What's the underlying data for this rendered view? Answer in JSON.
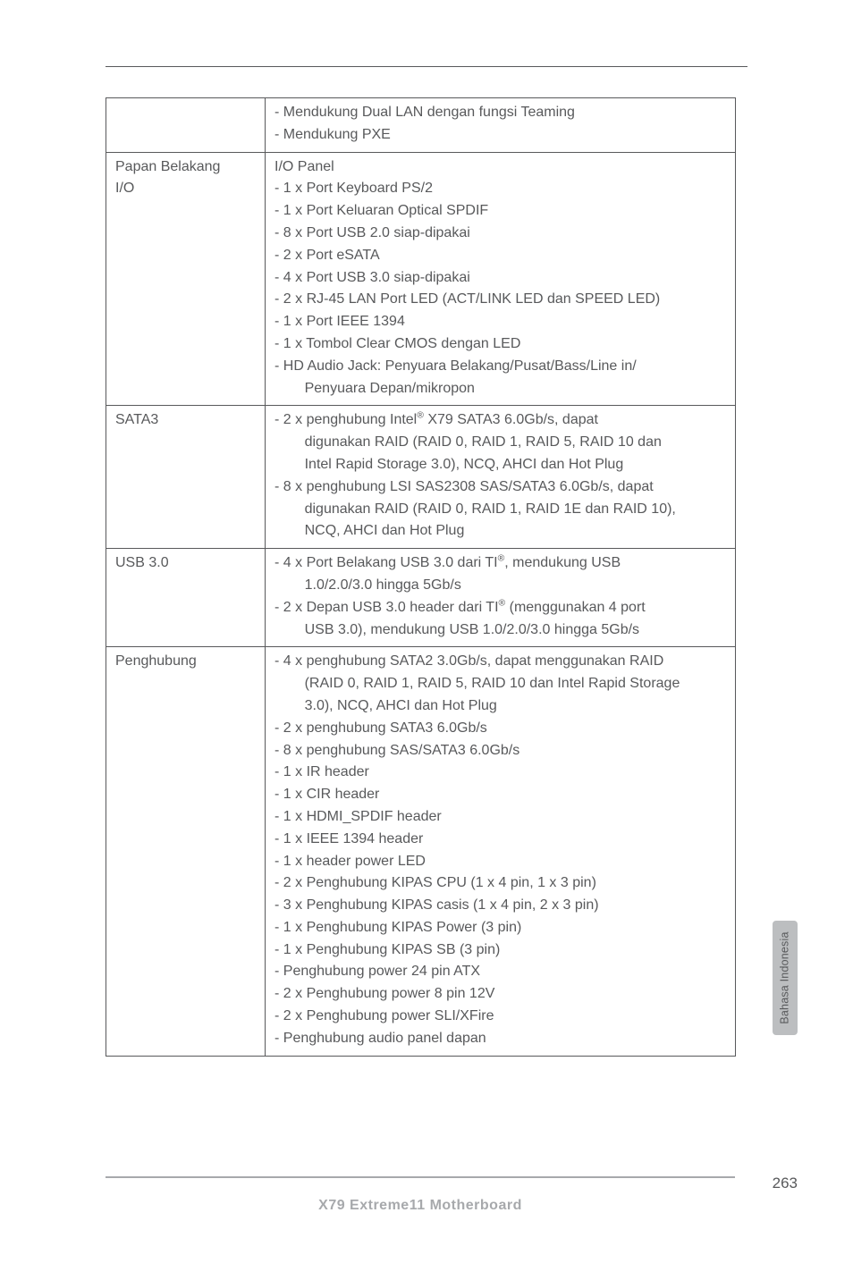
{
  "colors": {
    "text": "#58595b",
    "rule": "#58595b",
    "footer_rule": "#a7a9ac",
    "footer_text": "#a7a9ac",
    "side_tab_bg": "#bcbec0",
    "background": "#ffffff"
  },
  "typography": {
    "body_font": "Arial",
    "body_size_pt": 12,
    "line_height": 1.55
  },
  "side_tab": {
    "label": "Bahasa Indonesia"
  },
  "footer": {
    "title": "X79  Extreme11  Motherboard",
    "page_number": "263"
  },
  "rows": [
    {
      "label": "",
      "continuation": true,
      "lines": [
        {
          "t": "- Mendukung Dual LAN dengan fungsi Teaming"
        },
        {
          "t": "- Mendukung PXE"
        }
      ]
    },
    {
      "label": "Papan Belakang I/O",
      "label_parts": [
        "Papan Belakang",
        "I/O"
      ],
      "lines": [
        {
          "t": "I/O Panel"
        },
        {
          "t": "- 1 x Port Keyboard PS/2"
        },
        {
          "t": "- 1 x Port Keluaran Optical SPDIF"
        },
        {
          "t": "- 8 x Port USB 2.0 siap-dipakai"
        },
        {
          "t": "- 2 x Port eSATA"
        },
        {
          "t": "- 4 x Port USB 3.0 siap-dipakai"
        },
        {
          "t": "- 2 x RJ-45 LAN Port LED (ACT/LINK LED dan SPEED LED)"
        },
        {
          "t": "- 1 x Port IEEE 1394"
        },
        {
          "t": "- 1 x Tombol Clear CMOS dengan LED"
        },
        {
          "t": "- HD Audio Jack: Penyuara Belakang/Pusat/Bass/Line in/"
        },
        {
          "t": "Penyuara Depan/mikropon",
          "indent": 2
        }
      ]
    },
    {
      "label": "SATA3",
      "lines": [
        {
          "html": "- 2 x penghubung Intel<sup>®</sup> X79 SATA3 6.0Gb/s, dapat"
        },
        {
          "t": "digunakan RAID (RAID 0, RAID 1, RAID 5, RAID 10 dan",
          "indent": 2
        },
        {
          "t": "Intel Rapid Storage 3.0), NCQ, AHCI dan Hot Plug",
          "indent": 2
        },
        {
          "t": "- 8 x penghubung LSI SAS2308 SAS/SATA3 6.0Gb/s, dapat"
        },
        {
          "t": "digunakan RAID (RAID 0, RAID 1, RAID 1E dan RAID 10),",
          "indent": 2
        },
        {
          "t": "NCQ, AHCI dan Hot Plug",
          "indent": 2
        }
      ]
    },
    {
      "label": "USB 3.0",
      "lines": [
        {
          "html": "- 4 x Port Belakang USB 3.0 dari TI<sup>®</sup>, mendukung USB"
        },
        {
          "t": "1.0/2.0/3.0 hingga 5Gb/s",
          "indent": 2
        },
        {
          "html": "- 2 x Depan USB 3.0 header dari TI<sup>®</sup> (menggunakan 4 port"
        },
        {
          "t": "USB 3.0), mendukung USB 1.0/2.0/3.0 hingga 5Gb/s",
          "indent": 2
        }
      ]
    },
    {
      "label": "Penghubung",
      "lines": [
        {
          "t": "- 4 x penghubung SATA2 3.0Gb/s, dapat menggunakan RAID"
        },
        {
          "t": "(RAID 0, RAID 1, RAID 5, RAID 10 dan Intel Rapid Storage",
          "indent": 2
        },
        {
          "t": "3.0), NCQ, AHCI dan Hot Plug",
          "indent": 2
        },
        {
          "t": "- 2 x penghubung SATA3 6.0Gb/s"
        },
        {
          "t": "- 8 x penghubung SAS/SATA3 6.0Gb/s"
        },
        {
          "t": "- 1 x IR header"
        },
        {
          "t": "- 1 x CIR header"
        },
        {
          "t": "- 1 x HDMI_SPDIF header"
        },
        {
          "t": "- 1 x IEEE 1394 header"
        },
        {
          "t": "- 1 x header power LED"
        },
        {
          "t": "- 2 x Penghubung KIPAS CPU (1 x 4 pin, 1 x 3 pin)"
        },
        {
          "t": "- 3 x Penghubung KIPAS casis (1 x 4 pin, 2 x 3 pin)"
        },
        {
          "t": "- 1 x Penghubung KIPAS Power (3 pin)"
        },
        {
          "t": "- 1 x Penghubung KIPAS SB (3 pin)"
        },
        {
          "t": "- Penghubung power 24 pin ATX"
        },
        {
          "t": "- 2 x Penghubung power 8 pin 12V"
        },
        {
          "t": "- 2 x Penghubung power SLI/XFire"
        },
        {
          "t": "- Penghubung audio panel dapan"
        }
      ]
    }
  ]
}
